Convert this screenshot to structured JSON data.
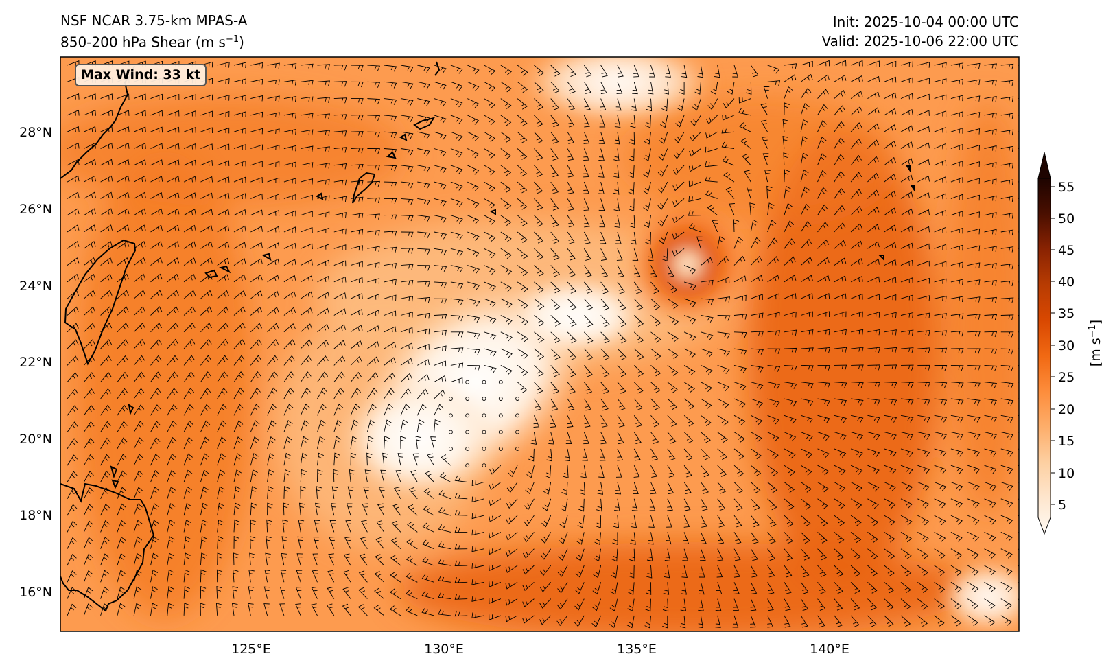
{
  "title": {
    "model": "NSF NCAR 3.75-km MPAS-A",
    "field": "850-200 hPa Shear (m s",
    "field_sup": "−1",
    "field_end": ")",
    "init": "Init: 2025-10-04 00:00 UTC",
    "valid": "Valid: 2025-10-06 22:00 UTC"
  },
  "annotation": {
    "max_wind": "Max Wind: 33 kt"
  },
  "axes": {
    "lon_ticks": [
      "125°E",
      "130°E",
      "135°E",
      "140°E"
    ],
    "lat_ticks": [
      "28°N",
      "26°N",
      "24°N",
      "22°N",
      "20°N",
      "18°N",
      "16°N"
    ]
  },
  "colorbar": {
    "label": "[m s",
    "label_sup": "−1",
    "label_end": "]",
    "ticks": [
      "5",
      "10",
      "15",
      "20",
      "25",
      "30",
      "35",
      "40",
      "45",
      "50",
      "55"
    ],
    "colors": [
      "#fffaf3",
      "#fee6ce",
      "#fdd0a2",
      "#fdae6b",
      "#fd8d3c",
      "#f16913",
      "#e45a0b",
      "#d94801",
      "#b83c02",
      "#a63603",
      "#8a2302",
      "#6f1a01",
      "#4a0f00",
      "#2a0600"
    ]
  },
  "map": {
    "extent_lon": [
      120.0,
      145.0
    ],
    "extent_lat": [
      15.0,
      30.0
    ],
    "storm_center": {
      "lon": 136.3,
      "lat": 24.7
    },
    "calm_center": {
      "lon": 131.0,
      "lat": 20.5
    },
    "coastline_color": "#000000",
    "barb_color": "#000000"
  }
}
